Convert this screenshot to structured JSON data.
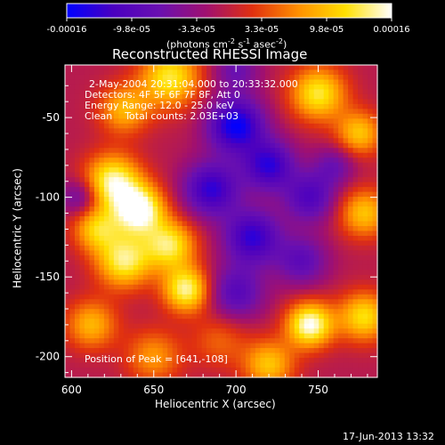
{
  "chart_data": {
    "type": "heatmap",
    "title": "Reconstructed RHESSI Image",
    "xlabel": "Heliocentric X (arcsec)",
    "ylabel": "Heliocentric Y (arcsec)",
    "xlim": [
      596,
      786
    ],
    "ylim": [
      -213,
      -17
    ],
    "xticks": [
      600,
      650,
      700,
      750
    ],
    "yticks": [
      -50,
      -100,
      -150,
      -200
    ],
    "colorbar": {
      "range": [
        -0.00016,
        0.00016
      ],
      "tick_labels": [
        "-0.00016",
        "-9.8e-05",
        "-3.3e-05",
        "3.3e-05",
        "9.8e-05",
        "0.00016"
      ],
      "unit_label": "(photons cm",
      "unit_parts": [
        "(photons cm",
        "-2",
        " s",
        "-1",
        " asec",
        "-2",
        ")"
      ],
      "colormap": [
        "#0000ff",
        "#4a00c0",
        "#6a10b0",
        "#a01070",
        "#e03010",
        "#ff9000",
        "#ffe000",
        "#ffffff"
      ]
    },
    "annotations": [
      "2-May-2004 20:31:04.000 to 20:33:32.000",
      "Detectors: 4F 5F 6F 7F 8F, Att 0",
      "Energy Range: 12.0 - 25.0 keV",
      "Clean    Total counts: 2.03E+03"
    ],
    "peak_label": "Position of Peak = [641,-108]",
    "peak": {
      "x": 641,
      "y": -108
    },
    "blobs": [
      {
        "x": 641,
        "y": -108,
        "amp": 1.0,
        "sigma": 11
      },
      {
        "x": 625,
        "y": -90,
        "amp": 0.85,
        "sigma": 12
      },
      {
        "x": 660,
        "y": -130,
        "amp": 0.75,
        "sigma": 11
      },
      {
        "x": 670,
        "y": -158,
        "amp": 0.85,
        "sigma": 10
      },
      {
        "x": 632,
        "y": -140,
        "amp": 0.8,
        "sigma": 12
      },
      {
        "x": 615,
        "y": -120,
        "amp": 0.6,
        "sigma": 10
      },
      {
        "x": 660,
        "y": -25,
        "amp": 0.75,
        "sigma": 13
      },
      {
        "x": 632,
        "y": -45,
        "amp": 0.55,
        "sigma": 11
      },
      {
        "x": 750,
        "y": -35,
        "amp": 0.75,
        "sigma": 12
      },
      {
        "x": 775,
        "y": -60,
        "amp": 0.6,
        "sigma": 10
      },
      {
        "x": 778,
        "y": -110,
        "amp": 0.6,
        "sigma": 11
      },
      {
        "x": 778,
        "y": -175,
        "amp": 0.7,
        "sigma": 11
      },
      {
        "x": 745,
        "y": -180,
        "amp": 0.95,
        "sigma": 10
      },
      {
        "x": 720,
        "y": -205,
        "amp": 0.6,
        "sigma": 11
      },
      {
        "x": 612,
        "y": -180,
        "amp": 0.55,
        "sigma": 11
      },
      {
        "x": 650,
        "y": -200,
        "amp": 0.45,
        "sigma": 12
      },
      {
        "x": 690,
        "y": -190,
        "amp": 0.3,
        "sigma": 12
      },
      {
        "x": 700,
        "y": -55,
        "amp": -0.85,
        "sigma": 12
      },
      {
        "x": 685,
        "y": -95,
        "amp": -0.7,
        "sigma": 12
      },
      {
        "x": 720,
        "y": -80,
        "amp": -0.7,
        "sigma": 11
      },
      {
        "x": 745,
        "y": -100,
        "amp": -0.55,
        "sigma": 11
      },
      {
        "x": 710,
        "y": -125,
        "amp": -0.7,
        "sigma": 12
      },
      {
        "x": 700,
        "y": -160,
        "amp": -0.5,
        "sigma": 12
      },
      {
        "x": 740,
        "y": -140,
        "amp": -0.45,
        "sigma": 11
      },
      {
        "x": 605,
        "y": -100,
        "amp": -0.4,
        "sigma": 8
      },
      {
        "x": 700,
        "y": -20,
        "amp": -0.35,
        "sigma": 10
      },
      {
        "x": 760,
        "y": -80,
        "amp": -0.35,
        "sigma": 9
      }
    ]
  },
  "footer": {
    "timestamp": "17-Jun-2013 13:32"
  }
}
